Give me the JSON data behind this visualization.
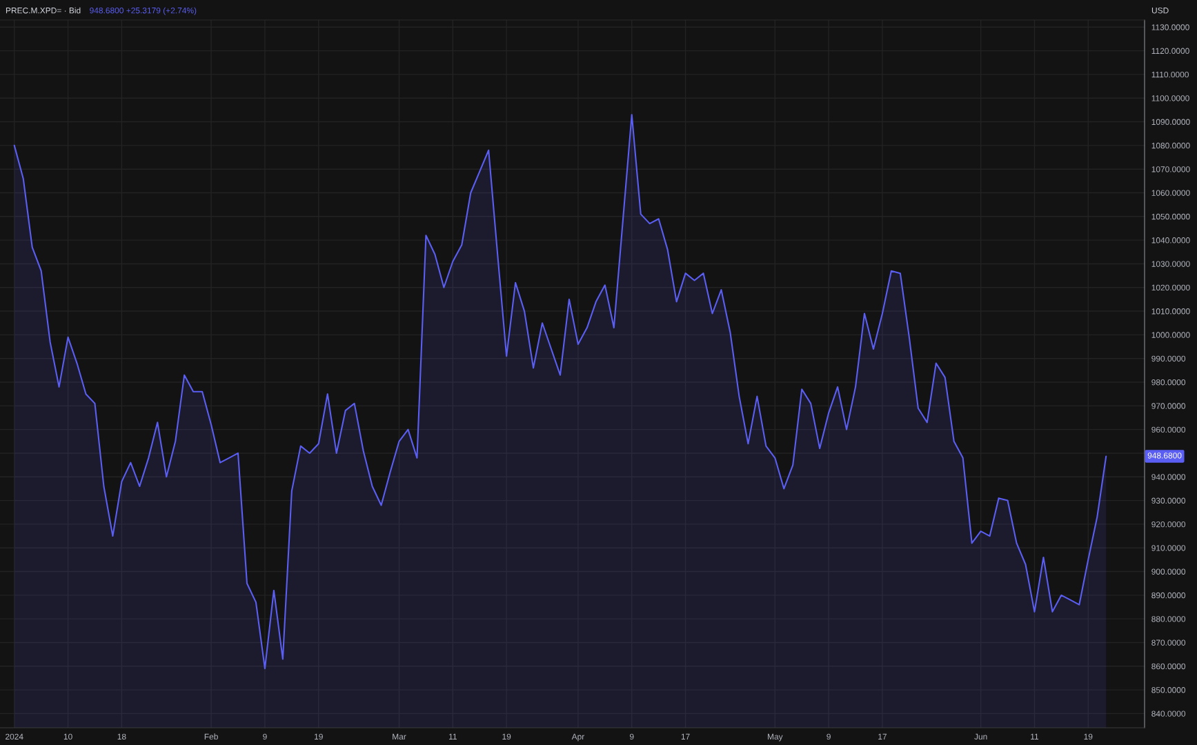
{
  "chart_data": {
    "type": "area",
    "title": "PREC.M.XPD= · Bid",
    "subtitle": "948.6800 +25.3179 (+2.74%)",
    "annotations": [
      "USD",
      "948.6800"
    ],
    "categories": [
      "2024",
      null,
      null,
      null,
      null,
      null,
      "10",
      null,
      null,
      null,
      null,
      null,
      "18",
      null,
      null,
      null,
      null,
      null,
      null,
      null,
      null,
      null,
      "Feb",
      null,
      null,
      null,
      null,
      null,
      "9",
      null,
      null,
      null,
      null,
      null,
      "19",
      null,
      null,
      null,
      null,
      null,
      null,
      null,
      null,
      "Mar",
      null,
      null,
      null,
      null,
      null,
      "11",
      null,
      null,
      null,
      null,
      null,
      "19",
      null,
      null,
      null,
      null,
      null,
      null,
      null,
      "Apr",
      null,
      null,
      null,
      null,
      null,
      "9",
      null,
      null,
      null,
      null,
      null,
      "17",
      null,
      null,
      null,
      null,
      null,
      null,
      null,
      null,
      null,
      "May",
      null,
      null,
      null,
      null,
      null,
      "9",
      null,
      null,
      null,
      null,
      null,
      "17",
      null,
      null,
      null,
      null,
      null,
      null,
      null,
      null,
      null,
      null,
      "Jun",
      null,
      null,
      null,
      null,
      null,
      "11",
      null,
      null,
      null,
      null,
      null,
      "19",
      null,
      null
    ],
    "series": [
      {
        "color": "#5b5ef2",
        "values": [
          1080,
          1066,
          1037,
          1027,
          997,
          978,
          999,
          988,
          975,
          971,
          936,
          915,
          938,
          946,
          936,
          948,
          963,
          940,
          955,
          983,
          976,
          976,
          962,
          946,
          948,
          950,
          895,
          887,
          859,
          892,
          863,
          934,
          953,
          950,
          954,
          975,
          950,
          968,
          971,
          951,
          936,
          928,
          942,
          955,
          960,
          948,
          1042,
          1034,
          1020,
          1031,
          1038,
          1060,
          1069,
          1078,
          1034,
          991,
          1022,
          1010,
          986,
          1005,
          994,
          983,
          1015,
          996,
          1003,
          1014,
          1021,
          1003,
          1048,
          1093,
          1051,
          1047,
          1049,
          1036,
          1014,
          1026,
          1023,
          1026,
          1009,
          1019,
          1001,
          974,
          954,
          974,
          953,
          948,
          935,
          945,
          977,
          971,
          952,
          967,
          978,
          960,
          978,
          1009,
          994,
          1009,
          1027,
          1026,
          999,
          969,
          963,
          988,
          982,
          955,
          948,
          912,
          917,
          915,
          931,
          930,
          912,
          903,
          883,
          906,
          883,
          890,
          888,
          886,
          905,
          923,
          948.68
        ]
      }
    ],
    "ylim": [
      834,
      1133
    ],
    "yticks": [
      {
        "value": 840,
        "label": "840.0000"
      },
      {
        "value": 850,
        "label": "850.0000"
      },
      {
        "value": 860,
        "label": "860.0000"
      },
      {
        "value": 870,
        "label": "870.0000"
      },
      {
        "value": 880,
        "label": "880.0000"
      },
      {
        "value": 890,
        "label": "890.0000"
      },
      {
        "value": 900,
        "label": "900.0000"
      },
      {
        "value": 910,
        "label": "910.0000"
      },
      {
        "value": 920,
        "label": "920.0000"
      },
      {
        "value": 930,
        "label": "930.0000"
      },
      {
        "value": 940,
        "label": "940.0000"
      },
      {
        "value": 950,
        "label": null
      },
      {
        "value": 960,
        "label": "960.0000"
      },
      {
        "value": 970,
        "label": "970.0000"
      },
      {
        "value": 980,
        "label": "980.0000"
      },
      {
        "value": 990,
        "label": "990.0000"
      },
      {
        "value": 1000,
        "label": "1000.0000"
      },
      {
        "value": 1010,
        "label": "1010.0000"
      },
      {
        "value": 1020,
        "label": "1020.0000"
      },
      {
        "value": 1030,
        "label": "1030.0000"
      },
      {
        "value": 1040,
        "label": "1040.0000"
      },
      {
        "value": 1050,
        "label": "1050.0000"
      },
      {
        "value": 1060,
        "label": "1060.0000"
      },
      {
        "value": 1070,
        "label": "1070.0000"
      },
      {
        "value": 1080,
        "label": "1080.0000"
      },
      {
        "value": 1090,
        "label": "1090.0000"
      },
      {
        "value": 1100,
        "label": "1100.0000"
      },
      {
        "value": 1110,
        "label": "1110.0000"
      },
      {
        "value": 1120,
        "label": "1120.0000"
      },
      {
        "value": 1130,
        "label": "1130.0000"
      }
    ],
    "grid": true
  }
}
